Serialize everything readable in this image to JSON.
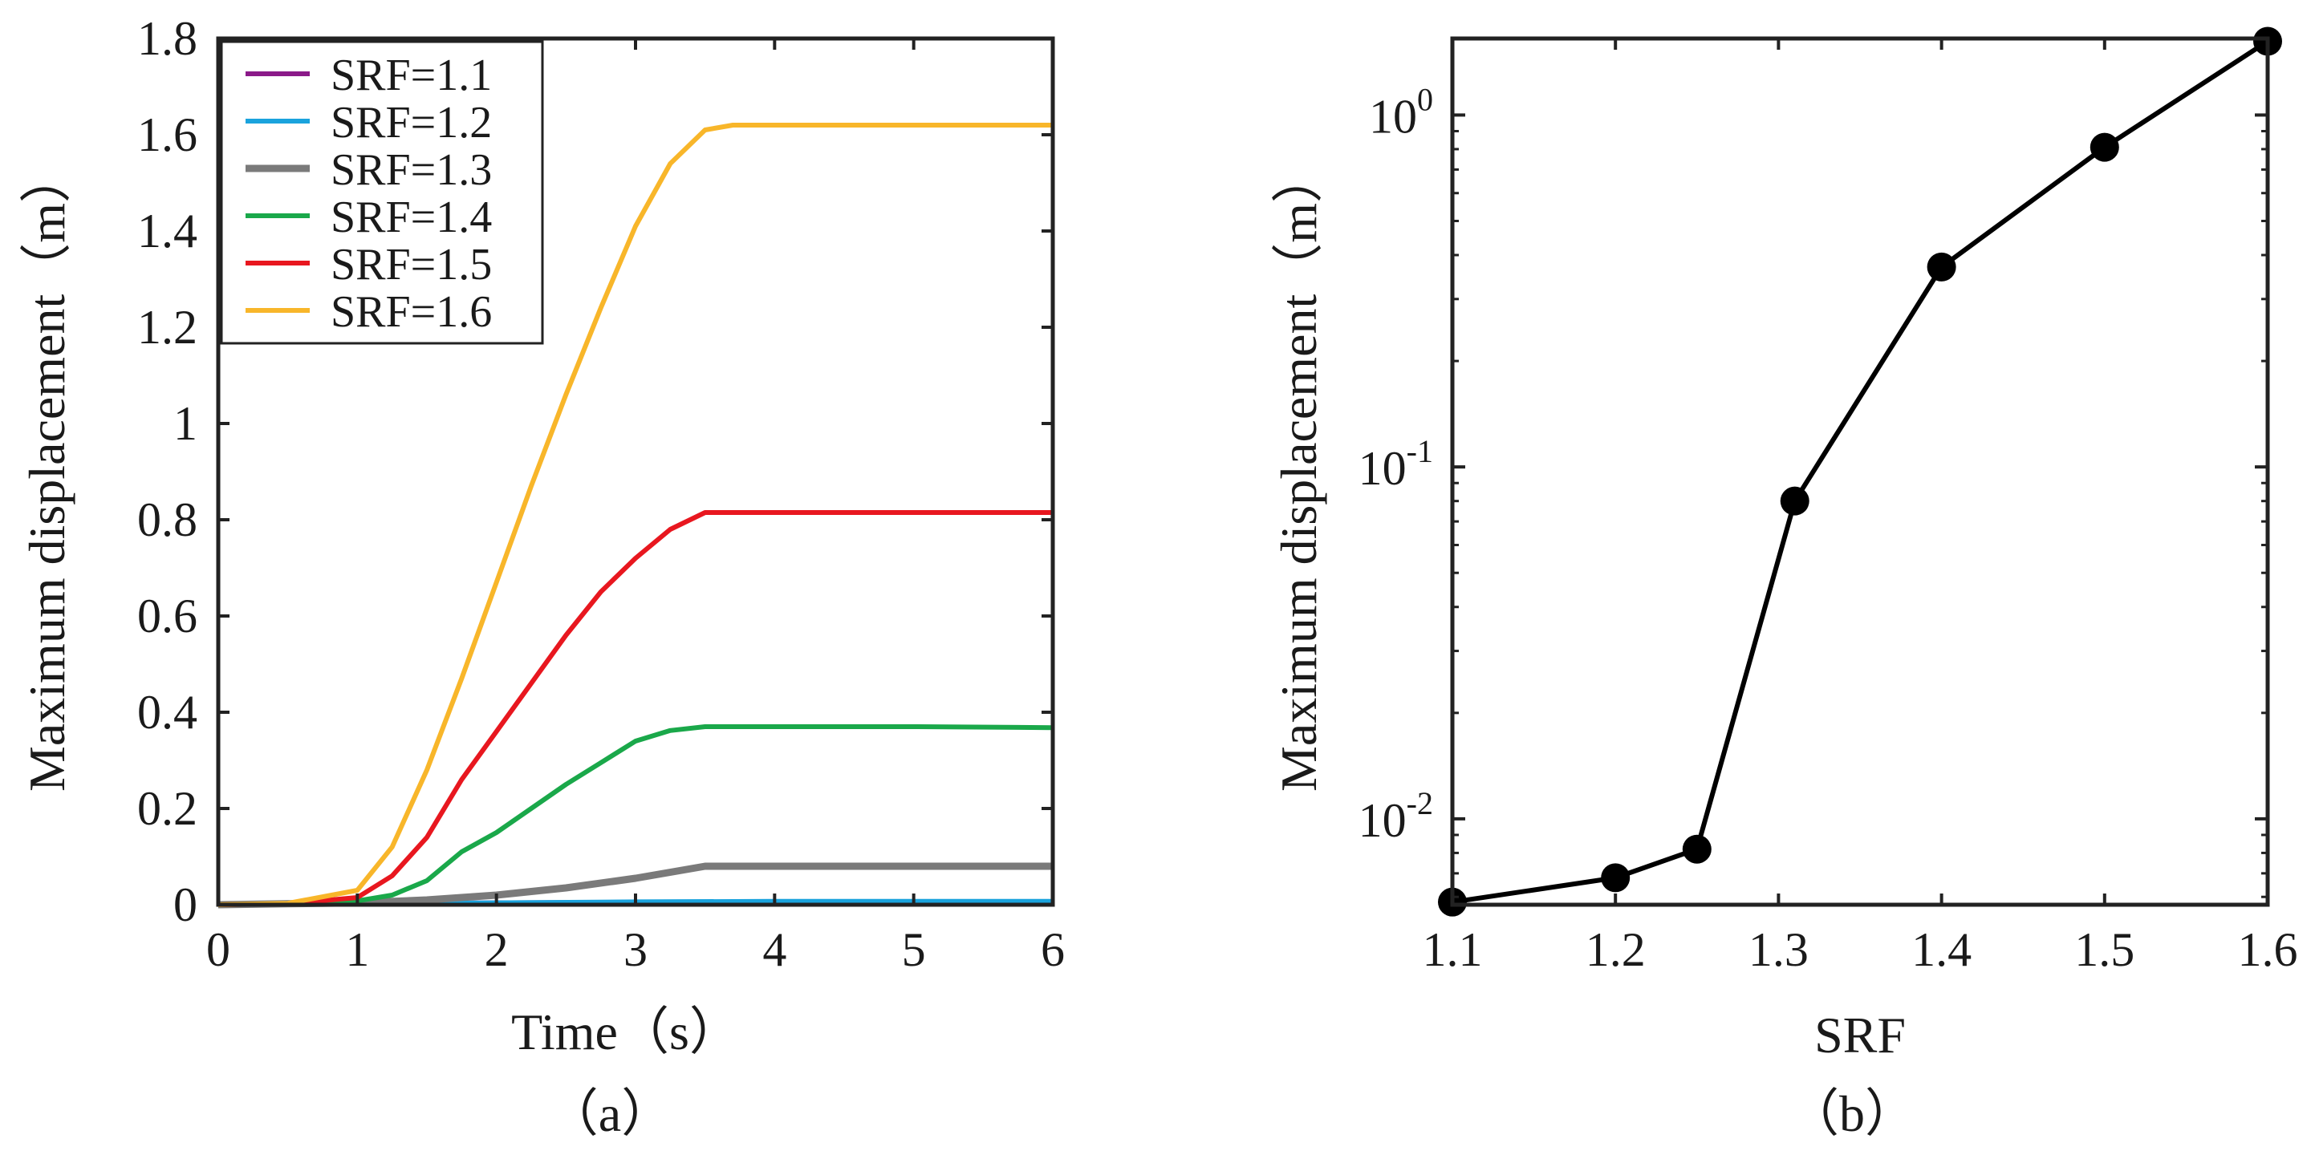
{
  "chart_data": [
    {
      "type": "line",
      "caption": "（a）",
      "xlabel": "Time（s）",
      "ylabel": "Maximum displacement（m）",
      "xlim": [
        0,
        6
      ],
      "ylim": [
        0,
        1.8
      ],
      "xticks": [
        "0",
        "1",
        "2",
        "3",
        "4",
        "5",
        "6"
      ],
      "yticks": [
        "0",
        "0.2",
        "0.4",
        "0.6",
        "0.8",
        "1",
        "1.2",
        "1.4",
        "1.6",
        "1.8"
      ],
      "legend_position": "top-left",
      "series": [
        {
          "name": "SRF=1.1",
          "color": "#8b1a89",
          "x": [
            0,
            1,
            2,
            3,
            4,
            5,
            6
          ],
          "values": [
            0,
            0.002,
            0.004,
            0.005,
            0.005,
            0.005,
            0.005
          ]
        },
        {
          "name": "SRF=1.2",
          "color": "#1aa3dd",
          "x": [
            0,
            1,
            2,
            3,
            4,
            5,
            6
          ],
          "values": [
            0,
            0.002,
            0.004,
            0.006,
            0.007,
            0.007,
            0.007
          ]
        },
        {
          "name": "SRF=1.3",
          "color": "#7a7a7a",
          "x": [
            0,
            0.5,
            1,
            1.5,
            2,
            2.5,
            3,
            3.5,
            4,
            5,
            6
          ],
          "values": [
            0,
            0.002,
            0.004,
            0.01,
            0.02,
            0.035,
            0.055,
            0.08,
            0.08,
            0.08,
            0.08
          ]
        },
        {
          "name": "SRF=1.4",
          "color": "#1aa84a",
          "x": [
            0,
            0.5,
            1,
            1.25,
            1.5,
            1.75,
            2,
            2.25,
            2.5,
            2.75,
            3,
            3.25,
            3.5,
            4,
            5,
            6
          ],
          "values": [
            0,
            0.002,
            0.008,
            0.02,
            0.05,
            0.11,
            0.15,
            0.2,
            0.25,
            0.295,
            0.34,
            0.362,
            0.37,
            0.37,
            0.37,
            0.368
          ]
        },
        {
          "name": "SRF=1.5",
          "color": "#e8171f",
          "x": [
            0,
            0.5,
            1,
            1.25,
            1.5,
            1.75,
            2,
            2.25,
            2.5,
            2.75,
            3,
            3.25,
            3.5,
            4,
            5,
            6
          ],
          "values": [
            0,
            0.002,
            0.015,
            0.06,
            0.14,
            0.26,
            0.36,
            0.46,
            0.56,
            0.65,
            0.72,
            0.78,
            0.815,
            0.815,
            0.815,
            0.815
          ]
        },
        {
          "name": "SRF=1.6",
          "color": "#f8b62a",
          "x": [
            0,
            0.5,
            1,
            1.25,
            1.5,
            1.75,
            2,
            2.25,
            2.5,
            2.75,
            3,
            3.25,
            3.5,
            3.7,
            4,
            5,
            6
          ],
          "values": [
            0,
            0.003,
            0.03,
            0.12,
            0.28,
            0.47,
            0.67,
            0.87,
            1.06,
            1.24,
            1.41,
            1.54,
            1.61,
            1.62,
            1.62,
            1.62,
            1.62
          ]
        }
      ]
    },
    {
      "type": "line",
      "yscale": "log",
      "caption": "（b）",
      "xlabel": "SRF",
      "ylabel": "Maximum displacement（m）",
      "xlim": [
        1.1,
        1.6
      ],
      "ylim": [
        0.0057,
        1.65
      ],
      "xticks": [
        "1.1",
        "1.2",
        "1.3",
        "1.4",
        "1.5",
        "1.6"
      ],
      "ytick_base": "10",
      "ytick_exponents": [
        "-2",
        "-1",
        "0"
      ],
      "series": [
        {
          "name": "Maximum displacement",
          "color": "#000000",
          "x": [
            1.1,
            1.2,
            1.25,
            1.31,
            1.4,
            1.5,
            1.6
          ],
          "values": [
            0.0058,
            0.0068,
            0.0082,
            0.08,
            0.37,
            0.81,
            1.62
          ]
        }
      ]
    }
  ]
}
